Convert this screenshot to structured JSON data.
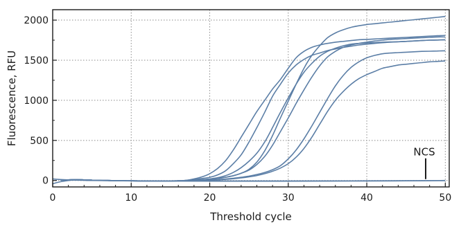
{
  "chart_data": {
    "type": "line",
    "title": "",
    "xlabel": "Threshold cycle",
    "ylabel": "Fluorescence, RFU",
    "xlim": [
      0,
      50.5
    ],
    "ylim": [
      -80,
      2130
    ],
    "xticks": [
      0,
      10,
      20,
      30,
      40,
      50
    ],
    "yticks": [
      0,
      500,
      1000,
      1500,
      2000
    ],
    "grid": true,
    "line_color": "#5b7ea6",
    "annotations": [
      {
        "text": "NCS",
        "x": 47.5,
        "y": 0
      }
    ],
    "series": [
      {
        "x": [
          1,
          2,
          3,
          4,
          5,
          6,
          7,
          8,
          9,
          10,
          11,
          12,
          13,
          14,
          15,
          16,
          17,
          18,
          19,
          20,
          21,
          22,
          23,
          24,
          25,
          26,
          27,
          28,
          29,
          30,
          31,
          32,
          33,
          34,
          35,
          36,
          37,
          38,
          39,
          40,
          41,
          42,
          43,
          44,
          45,
          46,
          47,
          48,
          49,
          50
        ],
        "values": [
          5,
          8,
          10,
          8,
          5,
          2,
          0,
          -2,
          -3,
          -4,
          -5,
          -5,
          -5,
          -5,
          -5,
          -4,
          2,
          20,
          45,
          85,
          150,
          245,
          380,
          540,
          700,
          860,
          1000,
          1140,
          1260,
          1400,
          1530,
          1610,
          1660,
          1690,
          1710,
          1725,
          1735,
          1745,
          1755,
          1760,
          1765,
          1770,
          1775,
          1780,
          1785,
          1790,
          1795,
          1800,
          1805,
          1810
        ]
      },
      {
        "x": [
          1,
          2,
          3,
          4,
          5,
          6,
          7,
          8,
          9,
          10,
          11,
          12,
          13,
          14,
          15,
          16,
          17,
          18,
          19,
          20,
          21,
          22,
          23,
          24,
          25,
          26,
          27,
          28,
          29,
          30,
          31,
          32,
          33,
          34,
          35,
          36,
          37,
          38,
          39,
          40,
          41,
          42,
          43,
          44,
          45,
          46,
          47,
          48,
          49,
          50
        ],
        "values": [
          5,
          8,
          10,
          8,
          5,
          2,
          0,
          -2,
          -3,
          -4,
          -5,
          -5,
          -5,
          -5,
          -5,
          -4,
          2,
          10,
          25,
          40,
          70,
          120,
          210,
          320,
          480,
          660,
          850,
          1050,
          1200,
          1340,
          1440,
          1510,
          1560,
          1590,
          1620,
          1640,
          1660,
          1675,
          1690,
          1700,
          1710,
          1718,
          1725,
          1730,
          1735,
          1740,
          1745,
          1750,
          1752,
          1755
        ]
      },
      {
        "x": [
          1,
          2,
          3,
          4,
          5,
          6,
          7,
          8,
          9,
          10,
          11,
          12,
          13,
          14,
          15,
          16,
          17,
          18,
          19,
          20,
          21,
          22,
          23,
          24,
          25,
          26,
          27,
          28,
          29,
          30,
          31,
          32,
          33,
          34,
          35,
          36,
          37,
          38,
          39,
          40,
          41,
          42,
          43,
          44,
          45,
          46,
          47,
          48,
          49,
          50
        ],
        "values": [
          5,
          8,
          10,
          8,
          5,
          2,
          0,
          -2,
          -3,
          -4,
          -5,
          -5,
          -5,
          -5,
          -5,
          -4,
          0,
          5,
          10,
          20,
          35,
          60,
          100,
          160,
          240,
          340,
          480,
          660,
          850,
          1030,
          1200,
          1350,
          1460,
          1550,
          1610,
          1650,
          1680,
          1700,
          1710,
          1715,
          1720,
          1725,
          1728,
          1730,
          1735,
          1740,
          1745,
          1750,
          1752,
          1755
        ]
      },
      {
        "x": [
          1,
          2,
          3,
          4,
          5,
          6,
          7,
          8,
          9,
          10,
          11,
          12,
          13,
          14,
          15,
          16,
          17,
          18,
          19,
          20,
          21,
          22,
          23,
          24,
          25,
          26,
          27,
          28,
          29,
          30,
          31,
          32,
          33,
          34,
          35,
          36,
          37,
          38,
          39,
          40,
          41,
          42,
          43,
          44,
          45,
          46,
          47,
          48,
          49,
          50
        ],
        "values": [
          5,
          8,
          10,
          8,
          5,
          2,
          0,
          -2,
          -3,
          -4,
          -5,
          -5,
          -5,
          -5,
          -5,
          -4,
          0,
          3,
          8,
          15,
          25,
          40,
          60,
          90,
          140,
          230,
          370,
          560,
          780,
          990,
          1200,
          1400,
          1560,
          1680,
          1780,
          1840,
          1880,
          1910,
          1930,
          1945,
          1955,
          1965,
          1975,
          1985,
          1995,
          2005,
          2015,
          2025,
          2035,
          2045
        ]
      },
      {
        "x": [
          1,
          2,
          3,
          4,
          5,
          6,
          7,
          8,
          9,
          10,
          11,
          12,
          13,
          14,
          15,
          16,
          17,
          18,
          19,
          20,
          21,
          22,
          23,
          24,
          25,
          26,
          27,
          28,
          29,
          30,
          31,
          32,
          33,
          34,
          35,
          36,
          37,
          38,
          39,
          40,
          41,
          42,
          43,
          44,
          45,
          46,
          47,
          48,
          49,
          50
        ],
        "values": [
          5,
          8,
          10,
          8,
          5,
          2,
          0,
          -2,
          -3,
          -4,
          -5,
          -5,
          -5,
          -5,
          -5,
          -4,
          0,
          3,
          8,
          15,
          25,
          40,
          60,
          90,
          130,
          200,
          300,
          440,
          610,
          780,
          960,
          1130,
          1290,
          1430,
          1540,
          1610,
          1660,
          1690,
          1710,
          1725,
          1740,
          1750,
          1760,
          1765,
          1770,
          1775,
          1780,
          1785,
          1790,
          1790
        ]
      },
      {
        "x": [
          1,
          2,
          3,
          4,
          5,
          6,
          7,
          8,
          9,
          10,
          11,
          12,
          13,
          14,
          15,
          16,
          17,
          18,
          19,
          20,
          21,
          22,
          23,
          24,
          25,
          26,
          27,
          28,
          29,
          30,
          31,
          32,
          33,
          34,
          35,
          36,
          37,
          38,
          39,
          40,
          41,
          42,
          43,
          44,
          45,
          46,
          47,
          48,
          49,
          50
        ],
        "values": [
          5,
          8,
          10,
          8,
          5,
          2,
          0,
          -2,
          -3,
          -4,
          -5,
          -5,
          -5,
          -5,
          -5,
          -4,
          -3,
          -2,
          0,
          5,
          10,
          18,
          28,
          40,
          55,
          75,
          100,
          135,
          185,
          270,
          380,
          520,
          680,
          850,
          1020,
          1180,
          1310,
          1410,
          1480,
          1530,
          1560,
          1580,
          1590,
          1595,
          1600,
          1605,
          1610,
          1612,
          1615,
          1618
        ]
      },
      {
        "x": [
          1,
          2,
          3,
          4,
          5,
          6,
          7,
          8,
          9,
          10,
          11,
          12,
          13,
          14,
          15,
          16,
          17,
          18,
          19,
          20,
          21,
          22,
          23,
          24,
          25,
          26,
          27,
          28,
          29,
          30,
          31,
          32,
          33,
          34,
          35,
          36,
          37,
          38,
          39,
          40,
          41,
          42,
          43,
          44,
          45,
          46,
          47,
          48,
          49,
          50
        ],
        "values": [
          5,
          8,
          10,
          8,
          5,
          2,
          0,
          -2,
          -3,
          -4,
          -5,
          -5,
          -5,
          -5,
          -5,
          -4,
          -3,
          -2,
          0,
          3,
          8,
          14,
          22,
          32,
          45,
          62,
          85,
          115,
          155,
          210,
          290,
          400,
          540,
          700,
          860,
          1000,
          1110,
          1200,
          1270,
          1320,
          1360,
          1400,
          1420,
          1440,
          1450,
          1460,
          1470,
          1480,
          1485,
          1490
        ]
      },
      {
        "x": [
          0,
          1,
          2,
          3,
          4,
          5,
          10,
          20,
          30,
          40,
          45,
          50
        ],
        "values": [
          -40,
          -15,
          0,
          8,
          5,
          2,
          -5,
          -8,
          -8,
          -6,
          -4,
          0
        ]
      },
      {
        "x": [
          0,
          1,
          2,
          3,
          5,
          10,
          20,
          30,
          40,
          50
        ],
        "values": [
          20,
          12,
          8,
          5,
          0,
          -4,
          -6,
          -6,
          -4,
          -2
        ]
      }
    ]
  }
}
